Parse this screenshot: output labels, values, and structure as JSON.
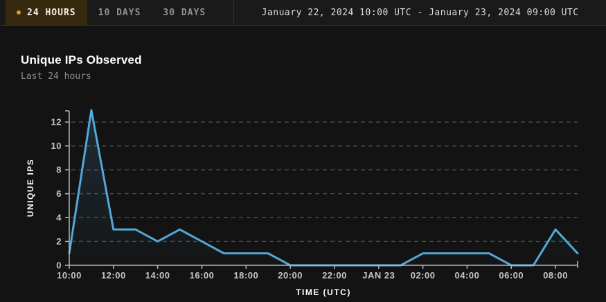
{
  "topbar": {
    "tabs": [
      {
        "label": "24 HOURS",
        "active": true
      },
      {
        "label": "10 DAYS",
        "active": false
      },
      {
        "label": "30 DAYS",
        "active": false
      }
    ],
    "date_range": "January 22, 2024 10:00 UTC - January 23, 2024 09:00 UTC"
  },
  "panel": {
    "title": "Unique IPs Observed",
    "subtitle": "Last 24 hours"
  },
  "chart_data": {
    "type": "line",
    "title": "Unique IPs Observed",
    "subtitle": "Last 24 hours",
    "xlabel": "TIME (UTC)",
    "ylabel": "UNIQUE IPS",
    "x": [
      "10:00",
      "11:00",
      "12:00",
      "13:00",
      "14:00",
      "15:00",
      "16:00",
      "17:00",
      "18:00",
      "19:00",
      "20:00",
      "21:00",
      "22:00",
      "23:00",
      "00:00",
      "01:00",
      "02:00",
      "03:00",
      "04:00",
      "05:00",
      "06:00",
      "07:00",
      "08:00",
      "09:00"
    ],
    "values": [
      1,
      13,
      3,
      3,
      2,
      3,
      2,
      1,
      1,
      1,
      0,
      0,
      0,
      0,
      0,
      0,
      1,
      1,
      1,
      1,
      0,
      0,
      3,
      1
    ],
    "x_tick_labels": [
      "10:00",
      "12:00",
      "14:00",
      "16:00",
      "18:00",
      "20:00",
      "22:00",
      "JAN 23",
      "02:00",
      "04:00",
      "06:00",
      "08:00"
    ],
    "x_tick_every": 2,
    "y_ticks": [
      0,
      2,
      4,
      6,
      8,
      10,
      12
    ],
    "ylim": [
      0,
      13
    ],
    "grid": "horizontal-dashed",
    "legend": "none",
    "line_color": "#54a7d8",
    "area_fill_color": "#54a7d8",
    "axis_color": "#b8b8b8",
    "grid_color": "#4a4a4a",
    "tick_label_color": "#c6c6c1",
    "accent_color": "#d9992f",
    "active_tab_bg": "#362a0e"
  }
}
